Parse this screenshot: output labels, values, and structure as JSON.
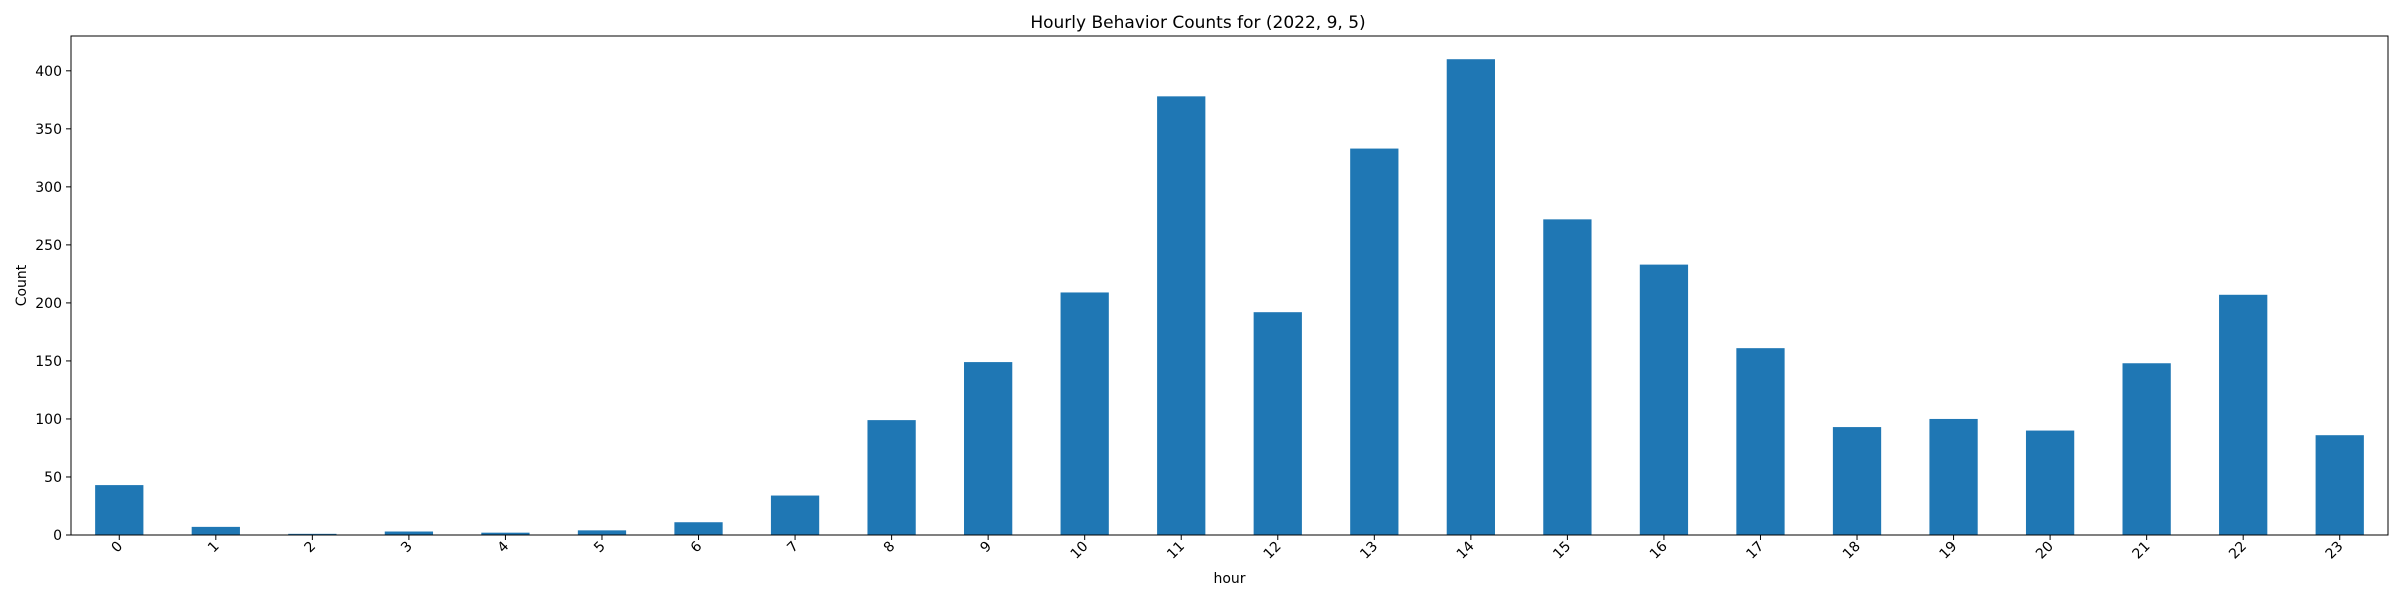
{
  "chart_data": {
    "type": "bar",
    "title": "Hourly Behavior Counts for (2022, 9, 5)",
    "xlabel": "hour",
    "ylabel": "Count",
    "categories": [
      "0",
      "1",
      "2",
      "3",
      "4",
      "5",
      "6",
      "7",
      "8",
      "9",
      "10",
      "11",
      "12",
      "13",
      "14",
      "15",
      "16",
      "17",
      "18",
      "19",
      "20",
      "21",
      "22",
      "23"
    ],
    "values": [
      43,
      7,
      1,
      3,
      2,
      4,
      11,
      34,
      99,
      149,
      209,
      378,
      192,
      333,
      410,
      272,
      233,
      161,
      93,
      100,
      90,
      148,
      207,
      86
    ],
    "ylim": [
      0,
      430
    ],
    "yticks": [
      0,
      50,
      100,
      150,
      200,
      250,
      300,
      350,
      400
    ],
    "bar_color": "#1f77b4",
    "grid": false,
    "legend": "none"
  }
}
